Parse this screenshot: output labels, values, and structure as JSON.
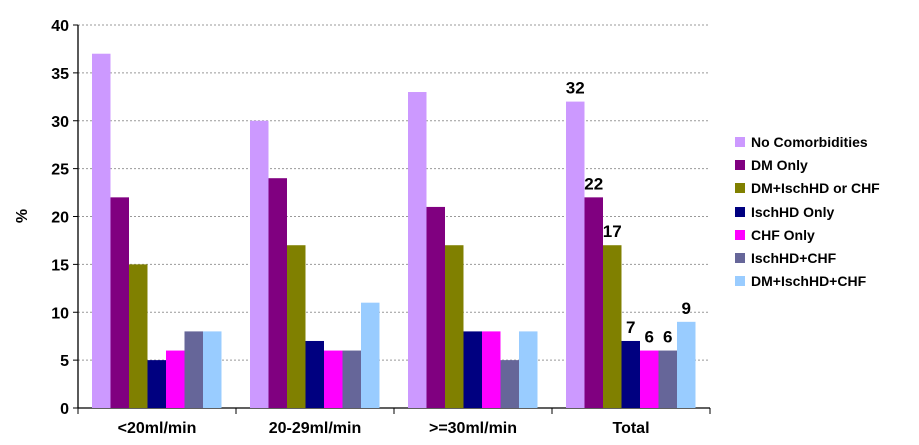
{
  "chart_data": {
    "type": "bar",
    "title": "",
    "xlabel": "",
    "ylabel": "%",
    "ylim": [
      0,
      40
    ],
    "yticks": [
      0,
      5,
      10,
      15,
      20,
      25,
      30,
      35,
      40
    ],
    "grid": true,
    "legend_position": "right",
    "categories": [
      "<20ml/min",
      "20-29ml/min",
      ">=30ml/min",
      "Total"
    ],
    "series": [
      {
        "name": "No Comorbidities",
        "color": "#CC99FF",
        "values": [
          37,
          30,
          33,
          32
        ]
      },
      {
        "name": "DM Only",
        "color": "#800080",
        "values": [
          22,
          24,
          21,
          22
        ]
      },
      {
        "name": "DM+IschHD or CHF",
        "color": "#808000",
        "values": [
          15,
          17,
          17,
          17
        ]
      },
      {
        "name": "IschHD Only",
        "color": "#000080",
        "values": [
          5,
          7,
          8,
          7
        ]
      },
      {
        "name": "CHF Only",
        "color": "#FF00FF",
        "values": [
          6,
          6,
          8,
          6
        ]
      },
      {
        "name": "IschHD+CHF",
        "color": "#666699",
        "values": [
          8,
          6,
          5,
          6
        ]
      },
      {
        "name": "DM+IschHD+CHF",
        "color": "#99CCFF",
        "values": [
          8,
          11,
          8,
          9
        ]
      }
    ],
    "data_labels": {
      "category": "Total",
      "labels": [
        "32",
        "22",
        "17",
        "7",
        "6",
        "6",
        "9"
      ]
    }
  }
}
